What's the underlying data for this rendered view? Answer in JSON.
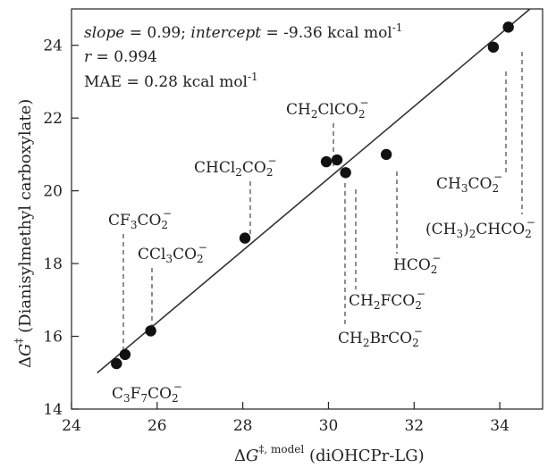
{
  "chart_data": {
    "type": "scatter",
    "xlim": [
      24,
      35
    ],
    "ylim": [
      14,
      25
    ],
    "x_ticks": [
      "24",
      "26",
      "28",
      "30",
      "32",
      "34"
    ],
    "y_ticks": [
      "14",
      "16",
      "18",
      "20",
      "22",
      "24"
    ],
    "xlabel": "ΔG‡, model (diOHCPr-LG)",
    "ylabel": "ΔG‡ (Dianisylmethyl carboxylate)",
    "annotations": [
      "slope = 0.99; intercept = -9.36 kcal mol-1",
      "r = 0.994",
      "MAE = 0.28 kcal mol-1"
    ],
    "fit_line": {
      "slope": 0.99,
      "intercept": -9.36,
      "x_range": [
        24.6,
        34.7
      ]
    },
    "points": [
      {
        "label": "C3F7CO2−",
        "x": 25.05,
        "y": 15.25
      },
      {
        "label": "CF3CO2−",
        "x": 25.25,
        "y": 15.5
      },
      {
        "label": "CCl3CO2−",
        "x": 25.85,
        "y": 16.15
      },
      {
        "label": "CHCl2CO2−",
        "x": 28.05,
        "y": 18.7
      },
      {
        "label": "CH2ClCO2−",
        "x": 29.95,
        "y": 20.8
      },
      {
        "label": "CH2BrCO2−",
        "x": 30.2,
        "y": 20.85
      },
      {
        "label": "CH2FCO2−",
        "x": 30.4,
        "y": 20.5
      },
      {
        "label": "HCO2−",
        "x": 31.35,
        "y": 21.0
      },
      {
        "label": "CH3CO2−",
        "x": 33.85,
        "y": 23.95
      },
      {
        "label": "(CH3)2CHCO2−",
        "x": 34.2,
        "y": 24.5
      }
    ]
  }
}
